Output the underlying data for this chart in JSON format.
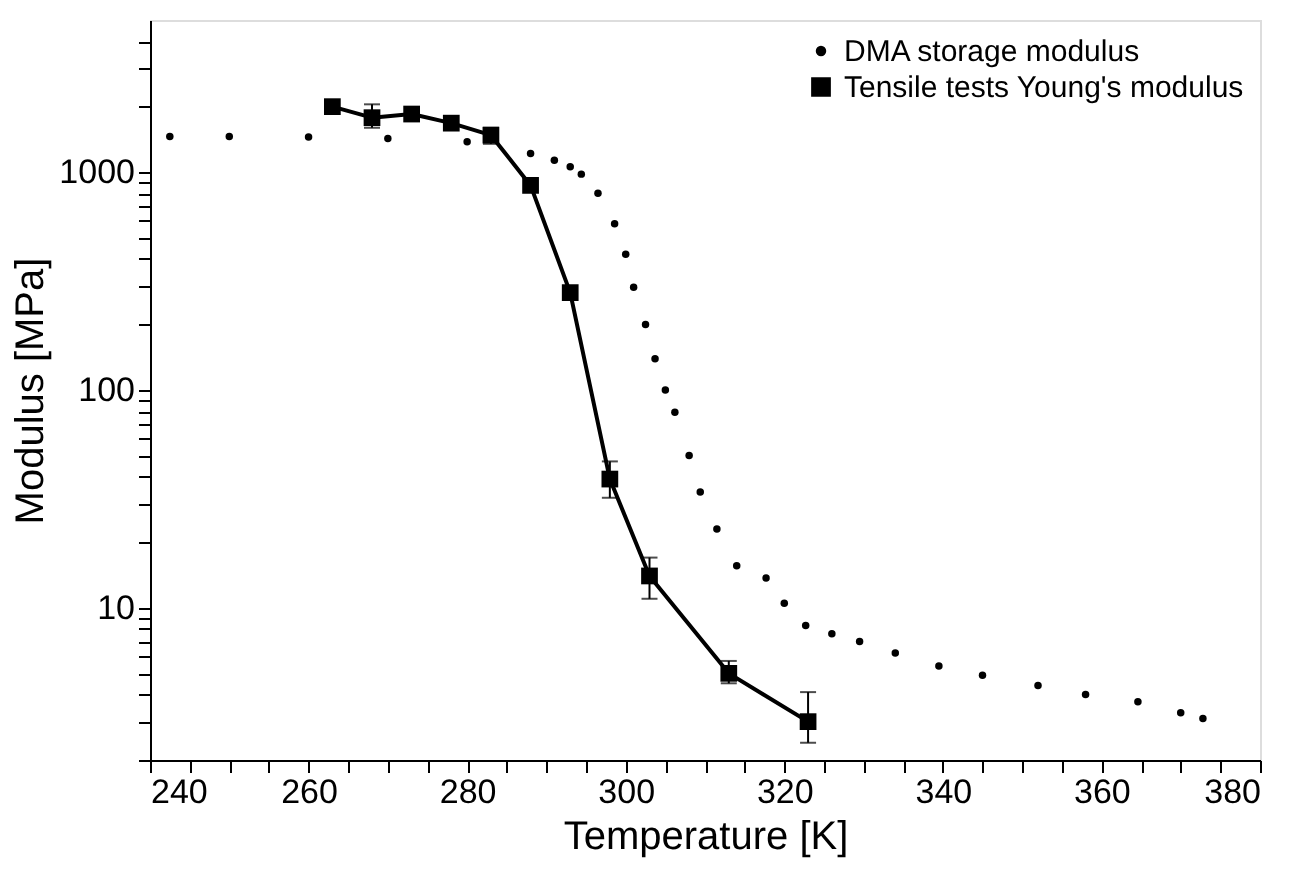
{
  "chart_data": {
    "type": "line",
    "xlabel": "Temperature [K]",
    "ylabel": "Modulus [MPa]",
    "log": "y",
    "xlim": [
      240,
      380
    ],
    "ylim": [
      2,
      5000
    ],
    "xticks": [
      240,
      {
        "value": 245,
        "label": null
      },
      {
        "value": 250,
        "label": null
      },
      {
        "value": 255,
        "label": null
      },
      260,
      {
        "value": 265,
        "label": null
      },
      {
        "value": 270,
        "label": null
      },
      {
        "value": 275,
        "label": null
      },
      280,
      {
        "value": 285,
        "label": null
      },
      {
        "value": 290,
        "label": null
      },
      {
        "value": 295,
        "label": null
      },
      300,
      {
        "value": 305,
        "label": null
      },
      {
        "value": 310,
        "label": null
      },
      {
        "value": 315,
        "label": null
      },
      320,
      {
        "value": 325,
        "label": null
      },
      {
        "value": 330,
        "label": null
      },
      {
        "value": 335,
        "label": null
      },
      340,
      {
        "value": 345,
        "label": null
      },
      {
        "value": 350,
        "label": null
      },
      {
        "value": 355,
        "label": null
      },
      360,
      {
        "value": 365,
        "label": null
      },
      {
        "value": 370,
        "label": null
      },
      {
        "value": 375,
        "label": null
      },
      380
    ],
    "yticks": [
      {
        "value": 2,
        "label": null
      },
      {
        "value": 3,
        "label": null
      },
      {
        "value": 4,
        "label": null
      },
      {
        "value": 5,
        "label": null
      },
      {
        "value": 6,
        "label": null
      },
      {
        "value": 7,
        "label": null
      },
      {
        "value": 8,
        "label": null
      },
      {
        "value": 9,
        "label": null
      },
      10,
      {
        "value": 20,
        "label": null
      },
      {
        "value": 30,
        "label": null
      },
      {
        "value": 40,
        "label": null
      },
      {
        "value": 50,
        "label": null
      },
      {
        "value": 60,
        "label": null
      },
      {
        "value": 70,
        "label": null
      },
      {
        "value": 80,
        "label": null
      },
      {
        "value": 90,
        "label": null
      },
      100,
      {
        "value": 200,
        "label": null
      },
      {
        "value": 300,
        "label": null
      },
      {
        "value": 400,
        "label": null
      },
      {
        "value": 500,
        "label": null
      },
      {
        "value": 600,
        "label": null
      },
      {
        "value": 700,
        "label": null
      },
      {
        "value": 800,
        "label": null
      },
      {
        "value": 900,
        "label": null
      },
      1000,
      {
        "value": 2000,
        "label": null
      },
      {
        "value": 3000,
        "label": null
      },
      {
        "value": 4000,
        "label": null
      }
    ],
    "grid": false,
    "legend": "top right",
    "series": [
      {
        "name": "DMA storage modulus",
        "type": "scatter",
        "marker": "circle",
        "color": "#000000",
        "x": [
          242.5,
          250,
          260,
          270,
          280,
          284.4,
          288,
          291,
          293,
          294.4,
          296.5,
          298.6,
          300,
          301,
          302.5,
          303.7,
          305,
          306.2,
          308,
          309.4,
          311.5,
          314,
          317.7,
          320,
          322.7,
          326,
          329.5,
          334,
          339.5,
          345,
          352,
          358,
          364.6,
          370,
          372.8
        ],
        "values": [
          1460,
          1460,
          1450,
          1430,
          1380,
          null,
          1220,
          1135,
          1060,
          980,
          800,
          580,
          420,
          296,
          200,
          139,
          100,
          79,
          50,
          34,
          23,
          15.6,
          13.7,
          10.5,
          8.3,
          7.6,
          7.0,
          6.2,
          5.4,
          4.9,
          4.4,
          4.0,
          3.7,
          3.3,
          3.1
        ]
      },
      {
        "name": "Tensile tests Young's modulus",
        "marker": "square",
        "color": "#000000",
        "x": [
          263,
          268,
          273,
          278,
          283,
          288,
          293,
          298,
          303,
          313,
          323
        ],
        "values": [
          2000,
          1780,
          1850,
          1680,
          1480,
          870,
          280,
          39,
          14,
          5,
          3
        ],
        "errors": [
          null,
          [
            1600,
            2050
          ],
          null,
          null,
          [
            1350,
            1600
          ],
          null,
          null,
          [
            32,
            47
          ],
          [
            11,
            17
          ],
          [
            4.5,
            5.7
          ],
          [
            2.4,
            4.1
          ]
        ]
      }
    ]
  }
}
